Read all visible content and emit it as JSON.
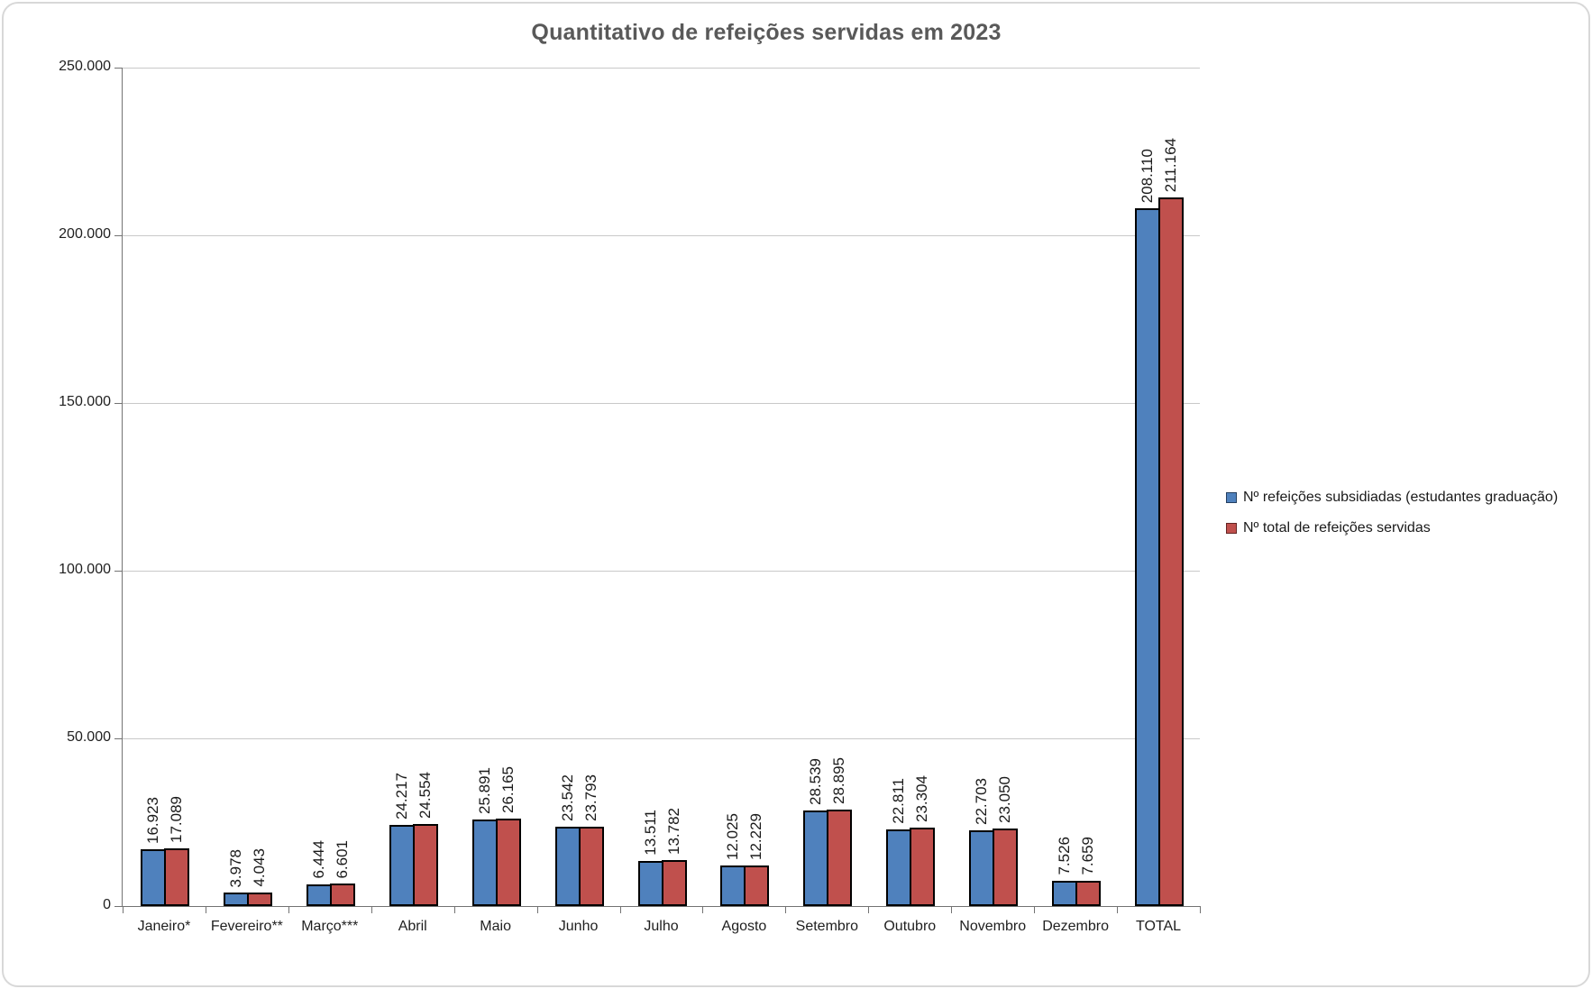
{
  "title": "Quantitativo de refeições servidas em 2023",
  "chart_data": {
    "type": "bar",
    "title": "Quantitativo de refeições servidas em 2023",
    "categories": [
      "Janeiro*",
      "Fevereiro**",
      "Março***",
      "Abril",
      "Maio",
      "Junho",
      "Julho",
      "Agosto",
      "Setembro",
      "Outubro",
      "Novembro",
      "Dezembro",
      "TOTAL"
    ],
    "series": [
      {
        "name": "Nº refeições subsidiadas (estudantes graduação)",
        "color": "#4F81BD",
        "marker_border": "#243F60",
        "values": [
          16923,
          3978,
          6444,
          24217,
          25891,
          23542,
          13511,
          12025,
          28539,
          22811,
          22703,
          7526,
          208110
        ],
        "labels": [
          "16.923",
          "3.978",
          "6.444",
          "24.217",
          "25.891",
          "23.542",
          "13.511",
          "12.025",
          "28.539",
          "22.811",
          "22.703",
          "7.526",
          "208.110"
        ]
      },
      {
        "name": "Nº total de refeições servidas",
        "color": "#C0504D",
        "marker_border": "#632423",
        "values": [
          17089,
          4043,
          6601,
          24554,
          26165,
          23793,
          13782,
          12229,
          28895,
          23304,
          23050,
          7659,
          211164
        ],
        "labels": [
          "17.089",
          "4.043",
          "6.601",
          "24.554",
          "26.165",
          "23.793",
          "13.782",
          "12.229",
          "28.895",
          "23.304",
          "23.050",
          "7.659",
          "211.164"
        ]
      }
    ],
    "ylim": [
      0,
      250000
    ],
    "ytick_step": 50000,
    "ytick_labels": [
      "0",
      "50.000",
      "100.000",
      "150.000",
      "200.000",
      "250.000"
    ],
    "grid": true,
    "legend_position": "right",
    "xlabel": "",
    "ylabel": ""
  },
  "colors": {
    "title": "#595959",
    "axis_line": "#737373",
    "gridline": "#C9C9C9",
    "bar_border": "#000000",
    "frame_border": "#D8D8D8",
    "series_blue": "#4F81BD",
    "series_red": "#C0504D"
  }
}
